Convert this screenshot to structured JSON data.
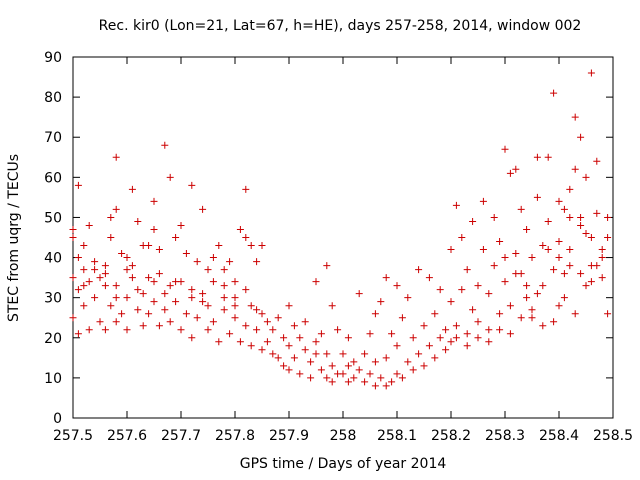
{
  "chart_data": {
    "type": "scatter",
    "title": "Rec. kir0 (Lon=21, Lat=67, h=HE), days 257-258, 2014, window 002",
    "xlabel": "GPS time / Days of year 2014",
    "ylabel": "STEC from uqrg / TECUs",
    "xlim": [
      257.5,
      258.5
    ],
    "ylim": [
      0,
      90
    ],
    "x_ticks": [
      257.5,
      257.6,
      257.7,
      257.8,
      257.9,
      258.0,
      258.1,
      258.2,
      258.3,
      258.4,
      258.5
    ],
    "x_tick_labels": [
      "257.5",
      "257.6",
      "257.7",
      "257.8",
      "257.9",
      "258",
      "258.1",
      "258.2",
      "258.3",
      "258.4",
      "258.5"
    ],
    "y_ticks": [
      0,
      10,
      20,
      30,
      40,
      50,
      60,
      70,
      80,
      90
    ],
    "y_tick_labels": [
      "0",
      "10",
      "20",
      "30",
      "40",
      "50",
      "60",
      "70",
      "80",
      "90"
    ],
    "grid": false,
    "marker": "+",
    "color": "#cc0000",
    "series": [
      {
        "name": "STEC",
        "points": [
          [
            257.5,
            47
          ],
          [
            257.5,
            45
          ],
          [
            257.51,
            40
          ],
          [
            257.51,
            58
          ],
          [
            257.52,
            43
          ],
          [
            257.52,
            37
          ],
          [
            257.53,
            48
          ],
          [
            257.54,
            39
          ],
          [
            257.55,
            35
          ],
          [
            257.56,
            33
          ],
          [
            257.57,
            50
          ],
          [
            257.57,
            45
          ],
          [
            257.58,
            65
          ],
          [
            257.58,
            52
          ],
          [
            257.59,
            41
          ],
          [
            257.6,
            40
          ],
          [
            257.61,
            38
          ],
          [
            257.61,
            57
          ],
          [
            257.62,
            49
          ],
          [
            257.63,
            43
          ],
          [
            257.64,
            43
          ],
          [
            257.65,
            54
          ],
          [
            257.65,
            47
          ],
          [
            257.66,
            42
          ],
          [
            257.67,
            68
          ],
          [
            257.68,
            60
          ],
          [
            257.69,
            45
          ],
          [
            257.7,
            48
          ],
          [
            257.71,
            41
          ],
          [
            257.72,
            58
          ],
          [
            257.73,
            39
          ],
          [
            257.74,
            52
          ],
          [
            257.75,
            37
          ],
          [
            257.76,
            40
          ],
          [
            257.77,
            43
          ],
          [
            257.78,
            37
          ],
          [
            257.79,
            39
          ],
          [
            257.8,
            34
          ],
          [
            257.81,
            47
          ],
          [
            257.82,
            45
          ],
          [
            257.82,
            57
          ],
          [
            257.83,
            43
          ],
          [
            257.84,
            39
          ],
          [
            257.85,
            43
          ],
          [
            257.5,
            25
          ],
          [
            257.51,
            21
          ],
          [
            257.51,
            32
          ],
          [
            257.52,
            28
          ],
          [
            257.53,
            22
          ],
          [
            257.53,
            34
          ],
          [
            257.54,
            30
          ],
          [
            257.55,
            24
          ],
          [
            257.56,
            36
          ],
          [
            257.56,
            22
          ],
          [
            257.57,
            28
          ],
          [
            257.58,
            33
          ],
          [
            257.58,
            24
          ],
          [
            257.59,
            26
          ],
          [
            257.6,
            22
          ],
          [
            257.6,
            30
          ],
          [
            257.61,
            35
          ],
          [
            257.62,
            27
          ],
          [
            257.63,
            23
          ],
          [
            257.63,
            31
          ],
          [
            257.64,
            26
          ],
          [
            257.65,
            29
          ],
          [
            257.65,
            34
          ],
          [
            257.66,
            23
          ],
          [
            257.67,
            31
          ],
          [
            257.67,
            27
          ],
          [
            257.68,
            24
          ],
          [
            257.69,
            34
          ],
          [
            257.69,
            29
          ],
          [
            257.7,
            22
          ],
          [
            257.71,
            26
          ],
          [
            257.72,
            30
          ],
          [
            257.72,
            20
          ],
          [
            257.73,
            25
          ],
          [
            257.74,
            31
          ],
          [
            257.75,
            22
          ],
          [
            257.75,
            28
          ],
          [
            257.76,
            24
          ],
          [
            257.77,
            19
          ],
          [
            257.78,
            27
          ],
          [
            257.78,
            33
          ],
          [
            257.79,
            21
          ],
          [
            257.8,
            25
          ],
          [
            257.8,
            30
          ],
          [
            257.81,
            19
          ],
          [
            257.82,
            23
          ],
          [
            257.83,
            28
          ],
          [
            257.83,
            18
          ],
          [
            257.84,
            22
          ],
          [
            257.85,
            26
          ],
          [
            257.85,
            17
          ],
          [
            257.5,
            35
          ],
          [
            257.52,
            33
          ],
          [
            257.54,
            37
          ],
          [
            257.56,
            38
          ],
          [
            257.58,
            30
          ],
          [
            257.6,
            37
          ],
          [
            257.62,
            32
          ],
          [
            257.64,
            35
          ],
          [
            257.66,
            36
          ],
          [
            257.68,
            33
          ],
          [
            257.7,
            34
          ],
          [
            257.72,
            32
          ],
          [
            257.74,
            29
          ],
          [
            257.76,
            34
          ],
          [
            257.78,
            30
          ],
          [
            257.8,
            28
          ],
          [
            257.82,
            32
          ],
          [
            257.84,
            27
          ],
          [
            257.86,
            24
          ],
          [
            257.86,
            19
          ],
          [
            257.87,
            22
          ],
          [
            257.87,
            16
          ],
          [
            257.88,
            25
          ],
          [
            257.88,
            15
          ],
          [
            257.89,
            20
          ],
          [
            257.89,
            13
          ],
          [
            257.9,
            28
          ],
          [
            257.9,
            18
          ],
          [
            257.9,
            12
          ],
          [
            257.91,
            23
          ],
          [
            257.91,
            15
          ],
          [
            257.92,
            20
          ],
          [
            257.92,
            11
          ],
          [
            257.93,
            17
          ],
          [
            257.93,
            24
          ],
          [
            257.94,
            14
          ],
          [
            257.94,
            10
          ],
          [
            257.95,
            19
          ],
          [
            257.95,
            16
          ],
          [
            257.95,
            34
          ],
          [
            257.96,
            12
          ],
          [
            257.96,
            21
          ],
          [
            257.97,
            10
          ],
          [
            257.97,
            38
          ],
          [
            257.97,
            16
          ],
          [
            257.98,
            9
          ],
          [
            257.98,
            13
          ],
          [
            257.98,
            28
          ],
          [
            257.99,
            11
          ],
          [
            257.99,
            22
          ],
          [
            258.0,
            11
          ],
          [
            258.0,
            16
          ],
          [
            258.01,
            9
          ],
          [
            258.01,
            13
          ],
          [
            258.01,
            20
          ],
          [
            258.02,
            10
          ],
          [
            258.02,
            14
          ],
          [
            258.03,
            12
          ],
          [
            258.03,
            31
          ],
          [
            258.04,
            9
          ],
          [
            258.04,
            16
          ],
          [
            258.05,
            11
          ],
          [
            258.05,
            21
          ],
          [
            258.06,
            8
          ],
          [
            258.06,
            14
          ],
          [
            258.06,
            26
          ],
          [
            258.07,
            10
          ],
          [
            258.07,
            29
          ],
          [
            258.08,
            8
          ],
          [
            258.08,
            15
          ],
          [
            258.08,
            35
          ],
          [
            258.09,
            9
          ],
          [
            258.09,
            21
          ],
          [
            258.1,
            11
          ],
          [
            258.1,
            33
          ],
          [
            258.1,
            18
          ],
          [
            258.11,
            10
          ],
          [
            258.11,
            25
          ],
          [
            258.12,
            14
          ],
          [
            258.12,
            30
          ],
          [
            258.13,
            12
          ],
          [
            258.13,
            20
          ],
          [
            258.14,
            16
          ],
          [
            258.14,
            37
          ],
          [
            258.15,
            13
          ],
          [
            258.15,
            23
          ],
          [
            258.16,
            18
          ],
          [
            258.16,
            35
          ],
          [
            258.17,
            15
          ],
          [
            258.17,
            26
          ],
          [
            258.18,
            20
          ],
          [
            258.18,
            32
          ],
          [
            258.19,
            17
          ],
          [
            258.19,
            22
          ],
          [
            258.2,
            19
          ],
          [
            258.2,
            29
          ],
          [
            258.2,
            42
          ],
          [
            258.21,
            53
          ],
          [
            258.21,
            23
          ],
          [
            258.22,
            32
          ],
          [
            258.22,
            45
          ],
          [
            258.23,
            21
          ],
          [
            258.23,
            37
          ],
          [
            258.24,
            27
          ],
          [
            258.24,
            49
          ],
          [
            258.25,
            24
          ],
          [
            258.25,
            33
          ],
          [
            258.26,
            54
          ],
          [
            258.26,
            42
          ],
          [
            258.27,
            22
          ],
          [
            258.27,
            31
          ],
          [
            258.28,
            50
          ],
          [
            258.28,
            38
          ],
          [
            258.29,
            26
          ],
          [
            258.29,
            44
          ],
          [
            258.3,
            67
          ],
          [
            258.3,
            34
          ],
          [
            258.31,
            61
          ],
          [
            258.31,
            28
          ],
          [
            258.32,
            62
          ],
          [
            258.32,
            41
          ],
          [
            258.33,
            52
          ],
          [
            258.33,
            36
          ],
          [
            258.34,
            30
          ],
          [
            258.34,
            47
          ],
          [
            258.35,
            25
          ],
          [
            258.35,
            40
          ],
          [
            258.36,
            65
          ],
          [
            258.36,
            55
          ],
          [
            258.37,
            43
          ],
          [
            258.37,
            33
          ],
          [
            258.38,
            65
          ],
          [
            258.38,
            49
          ],
          [
            258.39,
            81
          ],
          [
            258.39,
            37
          ],
          [
            258.4,
            44
          ],
          [
            258.4,
            28
          ],
          [
            258.41,
            52
          ],
          [
            258.41,
            36
          ],
          [
            258.42,
            57
          ],
          [
            258.42,
            42
          ],
          [
            258.43,
            75
          ],
          [
            258.43,
            62
          ],
          [
            258.44,
            70
          ],
          [
            258.44,
            50
          ],
          [
            258.45,
            60
          ],
          [
            258.45,
            46
          ],
          [
            258.46,
            86
          ],
          [
            258.46,
            38
          ],
          [
            258.47,
            51
          ],
          [
            258.47,
            64
          ],
          [
            258.48,
            42
          ],
          [
            258.48,
            35
          ],
          [
            258.49,
            50
          ],
          [
            258.49,
            26
          ],
          [
            258.21,
            20
          ],
          [
            258.23,
            18
          ],
          [
            258.25,
            20
          ],
          [
            258.27,
            19
          ],
          [
            258.29,
            22
          ],
          [
            258.31,
            21
          ],
          [
            258.33,
            25
          ],
          [
            258.35,
            27
          ],
          [
            258.37,
            23
          ],
          [
            258.39,
            24
          ],
          [
            258.41,
            30
          ],
          [
            258.43,
            26
          ],
          [
            258.45,
            33
          ],
          [
            258.47,
            38
          ],
          [
            258.49,
            45
          ],
          [
            258.3,
            40
          ],
          [
            258.32,
            36
          ],
          [
            258.34,
            33
          ],
          [
            258.36,
            31
          ],
          [
            258.38,
            42
          ],
          [
            258.4,
            40
          ],
          [
            258.42,
            38
          ],
          [
            258.44,
            36
          ],
          [
            258.46,
            34
          ],
          [
            258.48,
            40
          ],
          [
            258.4,
            54
          ],
          [
            258.42,
            50
          ],
          [
            258.44,
            48
          ],
          [
            258.46,
            45
          ]
        ]
      }
    ]
  }
}
